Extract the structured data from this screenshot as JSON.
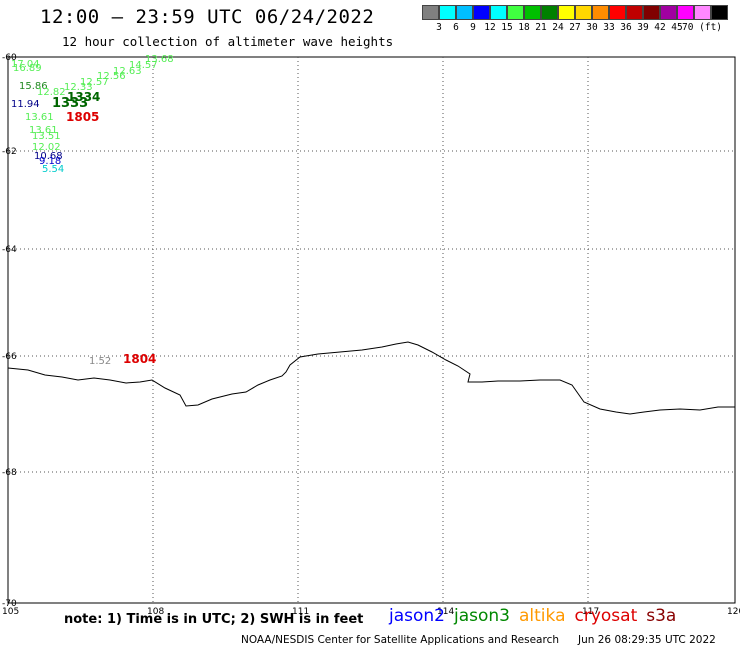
{
  "header": {
    "title": "12:00 – 23:59 UTC 06/24/2022",
    "subtitle": "12 hour collection of altimeter wave heights"
  },
  "legend": {
    "colors": [
      "#808080",
      "#00ffff",
      "#00bfff",
      "#0000ff",
      "#00ffff",
      "#40ff40",
      "#00c000",
      "#008000",
      "#ffff00",
      "#ffd700",
      "#ff8c00",
      "#ff0000",
      "#c00000",
      "#800000",
      "#a000a0",
      "#ff00ff",
      "#ff88ff",
      "#000000"
    ],
    "labels": [
      "3",
      "6",
      "9",
      "12",
      "15",
      "18",
      "21",
      "24",
      "27",
      "30",
      "33",
      "36",
      "39",
      "42",
      "45",
      "70 (ft)"
    ]
  },
  "axes": {
    "lon_ticks": [
      "105",
      "108",
      "111",
      "114",
      "117",
      "120"
    ],
    "lat_ticks": [
      "-60",
      "-62",
      "-64",
      "-66",
      "-68",
      "-70"
    ]
  },
  "observations": [
    {
      "text": "17.04",
      "color": "#55ee55"
    },
    {
      "text": "16.89",
      "color": "#55ee55"
    },
    {
      "text": "13.68",
      "color": "#55ee55"
    },
    {
      "text": "14.57",
      "color": "#55ee55"
    },
    {
      "text": "12.63",
      "color": "#55ee55"
    },
    {
      "text": "12.56",
      "color": "#55ee55"
    },
    {
      "text": "12.57",
      "color": "#55ee55"
    },
    {
      "text": "15.86",
      "color": "#228822"
    },
    {
      "text": "12.33",
      "color": "#55ee55"
    },
    {
      "text": "12.82",
      "color": "#55ee55"
    },
    {
      "text": "11.94",
      "color": "#000088"
    },
    {
      "text": "1334",
      "color": "#006600"
    },
    {
      "text": "1333",
      "color": "#006600"
    },
    {
      "text": "13.61",
      "color": "#55ee55"
    },
    {
      "text": "1805",
      "color": "#dd0000"
    },
    {
      "text": "13.61",
      "color": "#55ee55"
    },
    {
      "text": "13.51",
      "color": "#55ee55"
    },
    {
      "text": "12.02",
      "color": "#55ee55"
    },
    {
      "text": "10.68",
      "color": "#000088"
    },
    {
      "text": "9.18",
      "color": "#0000cc"
    },
    {
      "text": "5.54",
      "color": "#00cccc"
    },
    {
      "text": "1.52",
      "color": "#888888"
    },
    {
      "text": "1804",
      "color": "#dd0000"
    }
  ],
  "footer": {
    "note": "note:  1) Time is in UTC;  2) SWH is in feet",
    "missions": [
      {
        "name": "jason2",
        "color": "#0000ff"
      },
      {
        "name": "jason3",
        "color": "#008800"
      },
      {
        "name": "altika",
        "color": "#ff9900"
      },
      {
        "name": "cryosat",
        "color": "#dd0000"
      },
      {
        "name": "s3a",
        "color": "#880000"
      }
    ],
    "credit": "NOAA/NESDIS Center for Satellite Applications and Research",
    "timestamp": "Jun 26 08:29:35 UTC 2022"
  }
}
